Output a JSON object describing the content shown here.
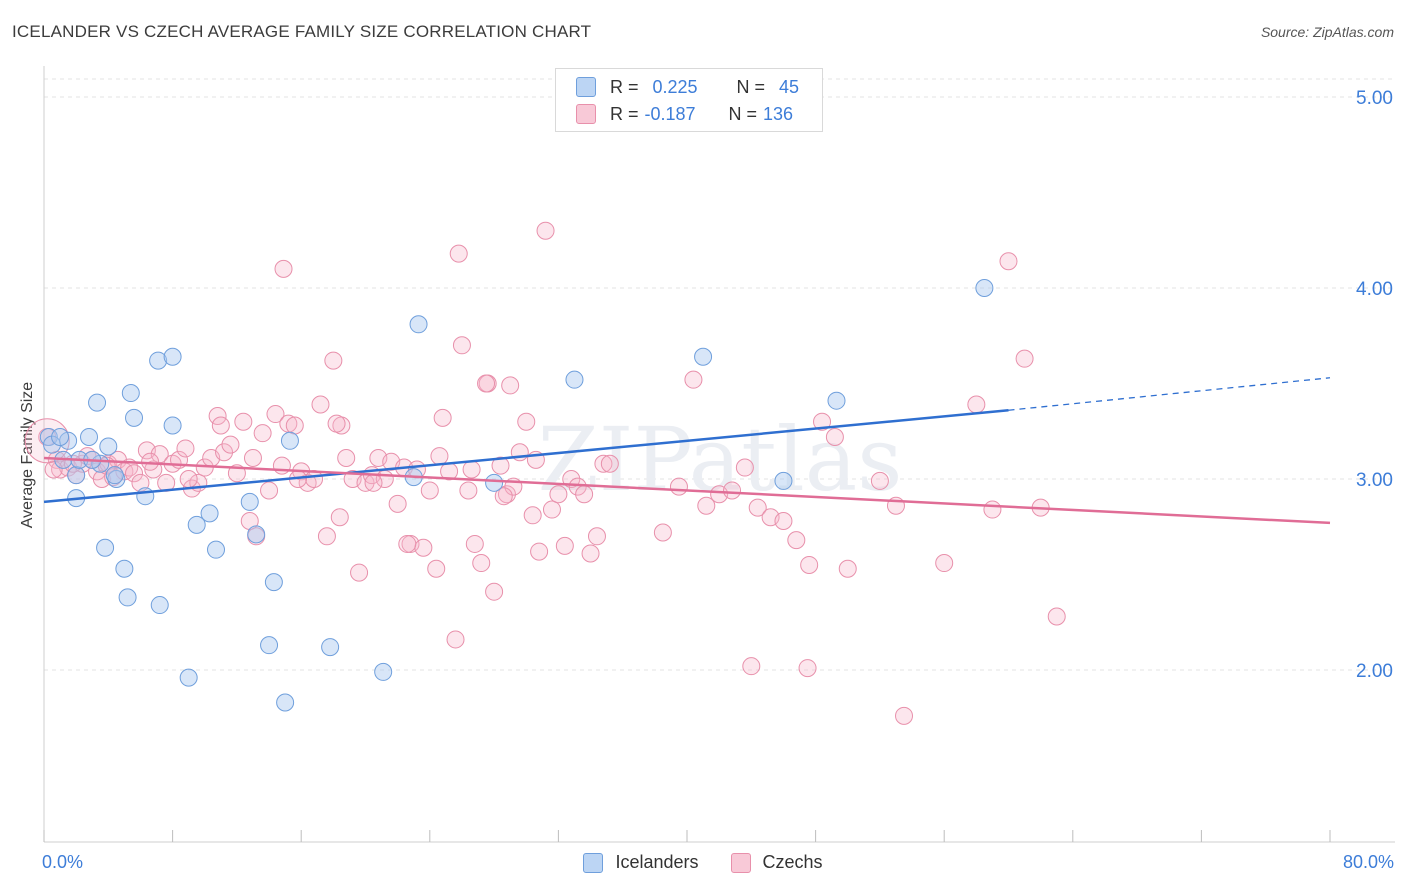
{
  "title": "ICELANDER VS CZECH AVERAGE FAMILY SIZE CORRELATION CHART",
  "source": "Source: ZipAtlas.com",
  "watermark": "ZIPatlas",
  "legend_top": {
    "rows": [
      {
        "r_label": "R =",
        "r_value": "0.225",
        "n_label": "N =",
        "n_value": "45"
      },
      {
        "r_label": "R =",
        "r_value": "-0.187",
        "n_label": "N =",
        "n_value": "136"
      }
    ]
  },
  "colors": {
    "blue_fill": "#a9c8f0",
    "blue_stroke": "#6f9fdc",
    "blue_line": "#2f6fd0",
    "pink_fill": "#f5b8cb",
    "pink_stroke": "#e890ab",
    "pink_line": "#e06d96",
    "axis_text": "#3d7dd8"
  },
  "chart_data": {
    "type": "scatter",
    "title": "ICELANDER VS CZECH AVERAGE FAMILY SIZE CORRELATION CHART",
    "xlabel": "",
    "ylabel": "Average Family Size",
    "xlim": [
      0,
      80
    ],
    "ylim": [
      1.1,
      5.2
    ],
    "x_tick_labels": [
      "0.0%",
      "80.0%"
    ],
    "y_ticks": [
      2.0,
      3.0,
      4.0,
      5.0
    ],
    "y_tick_labels": [
      "2.00",
      "3.00",
      "4.00",
      "5.00"
    ],
    "grid": "horizontal dashed",
    "legend_position": "top-center and bottom",
    "series": [
      {
        "name": "Icelanders",
        "r": 0.225,
        "n": 45,
        "trend": {
          "x": [
            0,
            60.0
          ],
          "y": [
            2.88,
            3.36
          ],
          "dashed_to": [
            80,
            3.53
          ]
        },
        "points": [
          [
            0.3,
            3.22
          ],
          [
            0.5,
            3.18
          ],
          [
            1.2,
            3.1
          ],
          [
            1.5,
            3.2
          ],
          [
            2.0,
            3.02
          ],
          [
            2.8,
            3.22
          ],
          [
            2.0,
            2.9
          ],
          [
            3.3,
            3.4
          ],
          [
            3.5,
            3.08
          ],
          [
            4.0,
            3.17
          ],
          [
            4.5,
            3.0
          ],
          [
            3.8,
            2.64
          ],
          [
            5.0,
            2.53
          ],
          [
            5.2,
            2.38
          ],
          [
            5.4,
            3.45
          ],
          [
            5.6,
            3.32
          ],
          [
            6.3,
            2.91
          ],
          [
            7.1,
            3.62
          ],
          [
            8.0,
            3.64
          ],
          [
            8.0,
            3.28
          ],
          [
            7.2,
            2.34
          ],
          [
            9.5,
            2.76
          ],
          [
            10.3,
            2.82
          ],
          [
            10.7,
            2.63
          ],
          [
            9.0,
            1.96
          ],
          [
            12.8,
            2.88
          ],
          [
            13.2,
            2.71
          ],
          [
            14.3,
            2.46
          ],
          [
            15.3,
            3.2
          ],
          [
            14.0,
            2.13
          ],
          [
            15.0,
            1.83
          ],
          [
            17.8,
            2.12
          ],
          [
            21.1,
            1.99
          ],
          [
            23.0,
            3.01
          ],
          [
            23.3,
            3.81
          ],
          [
            28.0,
            2.98
          ],
          [
            33.0,
            3.52
          ],
          [
            4.4,
            3.02
          ],
          [
            2.2,
            3.1
          ],
          [
            41.0,
            3.64
          ],
          [
            46.0,
            2.99
          ],
          [
            49.3,
            3.41
          ],
          [
            58.5,
            4.0
          ],
          [
            1.0,
            3.22
          ],
          [
            3.0,
            3.1
          ]
        ]
      },
      {
        "name": "Czechs",
        "r": -0.187,
        "n": 136,
        "trend": {
          "x": [
            0,
            80
          ],
          "y": [
            3.11,
            2.77
          ]
        },
        "points": [
          [
            0.2,
            3.22
          ],
          [
            0.8,
            3.1
          ],
          [
            1.0,
            3.05
          ],
          [
            1.5,
            3.06
          ],
          [
            2.0,
            3.02
          ],
          [
            2.4,
            3.08
          ],
          [
            2.7,
            3.12
          ],
          [
            3.0,
            3.1
          ],
          [
            3.3,
            3.04
          ],
          [
            3.6,
            3.0
          ],
          [
            4.0,
            3.08
          ],
          [
            4.3,
            3.01
          ],
          [
            4.6,
            3.1
          ],
          [
            5.0,
            3.04
          ],
          [
            5.3,
            3.06
          ],
          [
            5.6,
            3.03
          ],
          [
            6.0,
            2.98
          ],
          [
            6.4,
            3.15
          ],
          [
            6.8,
            3.05
          ],
          [
            7.2,
            3.13
          ],
          [
            7.6,
            2.98
          ],
          [
            8.0,
            3.08
          ],
          [
            8.4,
            3.1
          ],
          [
            8.8,
            3.16
          ],
          [
            9.2,
            2.95
          ],
          [
            9.6,
            2.98
          ],
          [
            10.0,
            3.06
          ],
          [
            10.4,
            3.11
          ],
          [
            10.8,
            3.33
          ],
          [
            11.2,
            3.14
          ],
          [
            11.6,
            3.18
          ],
          [
            12.0,
            3.03
          ],
          [
            12.4,
            3.3
          ],
          [
            12.8,
            2.78
          ],
          [
            13.2,
            2.7
          ],
          [
            13.6,
            3.24
          ],
          [
            14.0,
            2.94
          ],
          [
            14.4,
            3.34
          ],
          [
            14.8,
            3.07
          ],
          [
            15.2,
            3.29
          ],
          [
            15.6,
            3.28
          ],
          [
            16.0,
            3.04
          ],
          [
            16.4,
            2.98
          ],
          [
            16.8,
            3.0
          ],
          [
            17.2,
            3.39
          ],
          [
            17.6,
            2.7
          ],
          [
            18.0,
            3.62
          ],
          [
            18.4,
            2.8
          ],
          [
            18.8,
            3.11
          ],
          [
            19.2,
            3.0
          ],
          [
            19.6,
            2.51
          ],
          [
            20.0,
            2.98
          ],
          [
            20.4,
            3.02
          ],
          [
            20.8,
            3.11
          ],
          [
            21.2,
            3.0
          ],
          [
            21.6,
            3.09
          ],
          [
            22.0,
            2.87
          ],
          [
            22.4,
            3.06
          ],
          [
            22.8,
            2.66
          ],
          [
            23.2,
            3.05
          ],
          [
            23.6,
            2.64
          ],
          [
            24.0,
            2.94
          ],
          [
            24.4,
            2.53
          ],
          [
            24.8,
            3.32
          ],
          [
            25.2,
            3.04
          ],
          [
            25.6,
            2.16
          ],
          [
            26.0,
            3.7
          ],
          [
            26.4,
            2.94
          ],
          [
            26.8,
            2.66
          ],
          [
            27.2,
            2.56
          ],
          [
            27.6,
            3.5
          ],
          [
            28.0,
            2.41
          ],
          [
            28.4,
            3.07
          ],
          [
            28.8,
            2.92
          ],
          [
            29.2,
            2.96
          ],
          [
            29.6,
            3.14
          ],
          [
            30.0,
            3.3
          ],
          [
            30.4,
            2.81
          ],
          [
            30.8,
            2.62
          ],
          [
            31.2,
            4.3
          ],
          [
            31.6,
            2.84
          ],
          [
            32.0,
            2.92
          ],
          [
            32.4,
            2.65
          ],
          [
            32.8,
            3.0
          ],
          [
            33.2,
            2.96
          ],
          [
            33.6,
            2.92
          ],
          [
            34.0,
            2.61
          ],
          [
            34.4,
            2.7
          ],
          [
            34.8,
            3.08
          ],
          [
            35.2,
            3.08
          ],
          [
            38.5,
            2.72
          ],
          [
            39.5,
            2.96
          ],
          [
            40.4,
            3.52
          ],
          [
            41.2,
            2.86
          ],
          [
            42.0,
            2.92
          ],
          [
            42.8,
            2.94
          ],
          [
            43.6,
            3.06
          ],
          [
            44.4,
            2.85
          ],
          [
            45.2,
            2.8
          ],
          [
            46.0,
            2.78
          ],
          [
            46.8,
            2.68
          ],
          [
            47.6,
            2.55
          ],
          [
            48.4,
            3.3
          ],
          [
            49.2,
            3.22
          ],
          [
            50.0,
            2.53
          ],
          [
            52.0,
            2.99
          ],
          [
            53.0,
            2.86
          ],
          [
            56.0,
            2.56
          ],
          [
            58.0,
            3.39
          ],
          [
            59.0,
            2.84
          ],
          [
            60.0,
            4.14
          ],
          [
            61.0,
            3.63
          ],
          [
            62.0,
            2.85
          ],
          [
            63.0,
            2.28
          ],
          [
            44.0,
            2.02
          ],
          [
            47.5,
            2.01
          ],
          [
            53.5,
            1.76
          ],
          [
            14.9,
            4.1
          ],
          [
            25.8,
            4.18
          ],
          [
            27.5,
            3.5
          ],
          [
            18.5,
            3.28
          ],
          [
            29.0,
            3.49
          ],
          [
            0.6,
            3.05
          ],
          [
            1.8,
            3.08
          ],
          [
            3.9,
            3.07
          ],
          [
            6.6,
            3.09
          ],
          [
            9.0,
            3.0
          ],
          [
            11.0,
            3.28
          ],
          [
            13.0,
            3.11
          ],
          [
            15.8,
            3.0
          ],
          [
            18.2,
            3.29
          ],
          [
            20.5,
            2.98
          ],
          [
            22.6,
            2.66
          ],
          [
            24.6,
            3.12
          ],
          [
            26.6,
            3.05
          ],
          [
            28.6,
            2.91
          ],
          [
            30.6,
            3.1
          ]
        ]
      }
    ]
  },
  "bottom_legend": [
    {
      "label": "Icelanders"
    },
    {
      "label": "Czechs"
    }
  ]
}
